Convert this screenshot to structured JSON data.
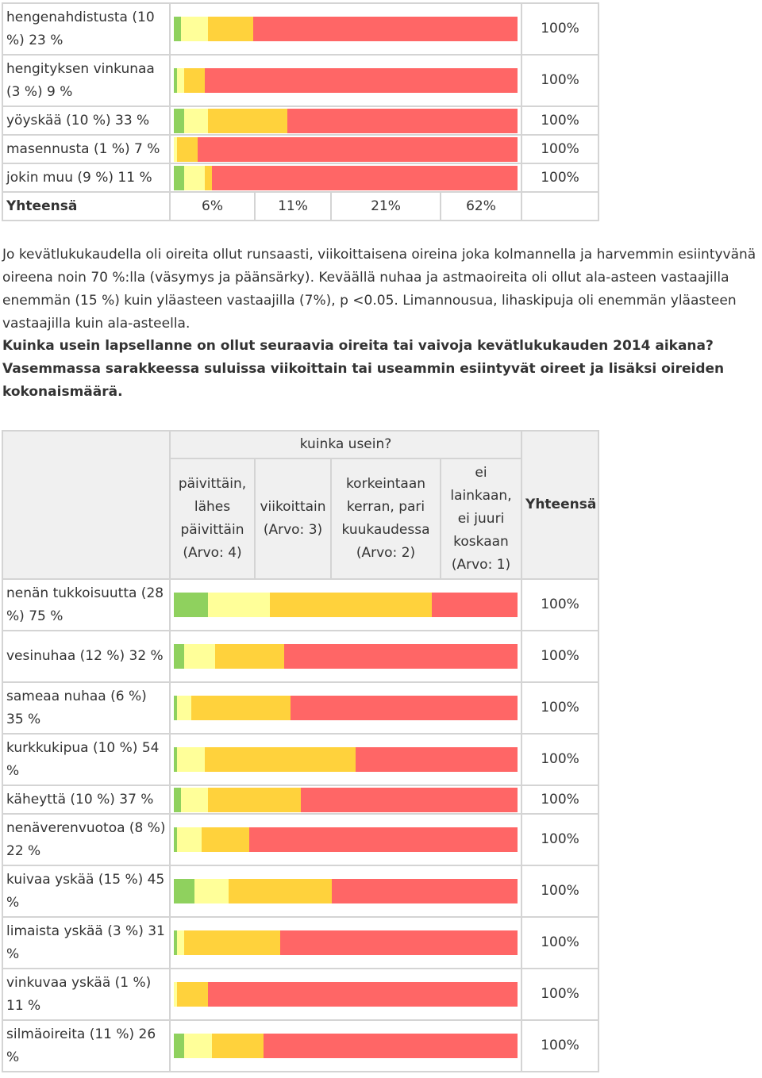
{
  "colors": {
    "daily": "#8fd15e",
    "weekly": "#ffff99",
    "monthly": "#ffd23c",
    "never": "#ff6666"
  },
  "chart_data": [
    {
      "type": "bar",
      "stacked": true,
      "orientation": "horizontal",
      "categories": [
        "hengenahdistusta (10 %) 23 %",
        "hengityksen vinkunaa (3 %) 9 %",
        "yöyskää (10 %) 33 %",
        "masennusta (1 %) 7 %",
        "jokin muu (9 %) 11 %"
      ],
      "series": [
        {
          "name": "päivittäin, lähes päivittäin (Arvo: 4)",
          "values": [
            2,
            1,
            3,
            0,
            3
          ]
        },
        {
          "name": "viikoittain (Arvo: 3)",
          "values": [
            8,
            2,
            7,
            1,
            6
          ]
        },
        {
          "name": "korkeintaan kerran, pari kuukaudessa (Arvo: 2)",
          "values": [
            13,
            6,
            23,
            6,
            2
          ]
        },
        {
          "name": "ei lainkaan, ei juuri koskaan (Arvo: 1)",
          "values": [
            77,
            91,
            67,
            93,
            89
          ]
        }
      ],
      "totals": [
        "100%",
        "100%",
        "100%",
        "100%",
        "100%"
      ],
      "summary": {
        "label": "Yhteensä",
        "values": [
          "6%",
          "11%",
          "21%",
          "62%"
        ]
      },
      "ylim": [
        0,
        100
      ]
    },
    {
      "type": "bar",
      "stacked": true,
      "orientation": "horizontal",
      "title": "kuinka usein?",
      "categories": [
        "nenän tukkoisuutta (28 %) 75 %",
        "vesinuhaa (12 %) 32 %",
        "sameaa nuhaa (6 %) 35 %",
        "kurkkukipua (10 %) 54 %",
        "käheyttä (10 %) 37 %",
        "nenäverenvuotoa (8 %) 22 %",
        "kuivaa yskää (15 %) 45 %",
        "limaista yskää (3 %) 31 %",
        "vinkuvaa yskää (1 %) 11 %",
        "silmäoireita (11 %) 26 %"
      ],
      "series": [
        {
          "name": "päivittäin, lähes päivittäin (Arvo: 4)",
          "values": [
            10,
            3,
            1,
            1,
            2,
            1,
            6,
            1,
            0,
            3
          ]
        },
        {
          "name": "viikoittain (Arvo: 3)",
          "values": [
            18,
            9,
            4,
            8,
            8,
            7,
            10,
            2,
            1,
            8
          ]
        },
        {
          "name": "korkeintaan kerran, pari kuukaudessa (Arvo: 2)",
          "values": [
            47,
            20,
            29,
            44,
            27,
            14,
            30,
            28,
            9,
            15
          ]
        },
        {
          "name": "ei lainkaan, ei juuri koskaan (Arvo: 1)",
          "values": [
            25,
            68,
            66,
            47,
            63,
            78,
            54,
            69,
            90,
            74
          ]
        }
      ],
      "totals": [
        "100%",
        "100%",
        "100%",
        "100%",
        "100%",
        "100%",
        "100%",
        "100%",
        "100%",
        "100%"
      ],
      "ylim": [
        0,
        100
      ]
    }
  ],
  "table2": {
    "header_title": "kuinka usein?",
    "columns": [
      {
        "label": "päivittäin, lähes päivittäin (Arvo: 4)"
      },
      {
        "label": "viikoittain (Arvo: 3)"
      },
      {
        "label": "korkeintaan kerran, pari kuukaudessa (Arvo: 2)"
      },
      {
        "label": "ei lainkaan, ei juuri koskaan (Arvo: 1)"
      }
    ],
    "total_header": "Yhteensä"
  },
  "text": {
    "paragraph": "Jo kevätlukukaudella oli oireita ollut runsaasti, viikoittaisena oireina joka kolmannella ja harvemmin esiintyvänä oireena noin 70 %:lla (väsymys ja päänsärky). Keväällä nuhaa ja astmaoireita oli ollut ala-asteen vastaajilla enemmän (15 %) kuin yläasteen vastaajilla (7%), p <0.05. Limannousua, lihaskipuja oli enemmän yläasteen vastaajilla kuin ala-asteella.",
    "question": "Kuinka usein lapsellanne on ollut seuraavia oireita tai vaivoja kevätlukukauden 2014 aikana? Vasemmassa sarakkeessa suluissa viikoittain tai useammin esiintyvät oireet ja lisäksi oireiden kokonaismäärä."
  }
}
